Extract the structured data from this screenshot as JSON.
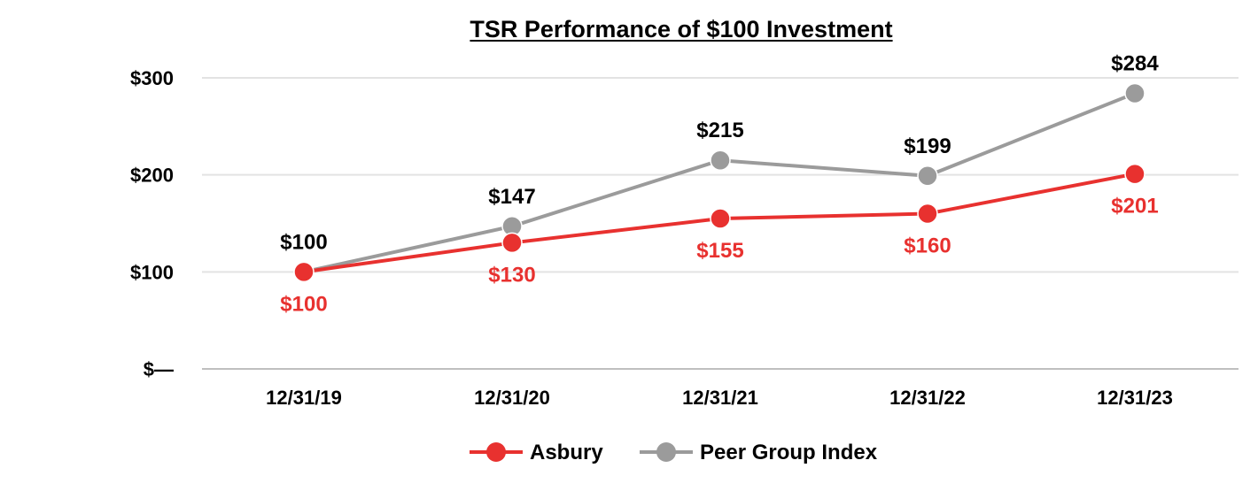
{
  "chart_data": {
    "type": "line",
    "title": "TSR Performance of $100 Investment",
    "xlabel": "",
    "ylabel": "",
    "categories": [
      "12/31/19",
      "12/31/20",
      "12/31/21",
      "12/31/22",
      "12/31/23"
    ],
    "ylim": [
      0,
      300
    ],
    "yticks": [
      0,
      100,
      200,
      300
    ],
    "ytick_labels": [
      "$—",
      "$100",
      "$200",
      "$300"
    ],
    "grid": true,
    "legend_position": "bottom-center",
    "series": [
      {
        "name": "Asbury",
        "color": "#e8312f",
        "values": [
          100,
          130,
          155,
          160,
          201
        ],
        "labels": [
          "$100",
          "$130",
          "$155",
          "$160",
          "$201"
        ],
        "label_position": "below"
      },
      {
        "name": "Peer Group Index",
        "color": "#9b9b9b",
        "values": [
          100,
          147,
          215,
          199,
          284
        ],
        "labels": [
          "$100",
          "$147",
          "$215",
          "$199",
          "$284"
        ],
        "label_position": "above"
      }
    ]
  }
}
